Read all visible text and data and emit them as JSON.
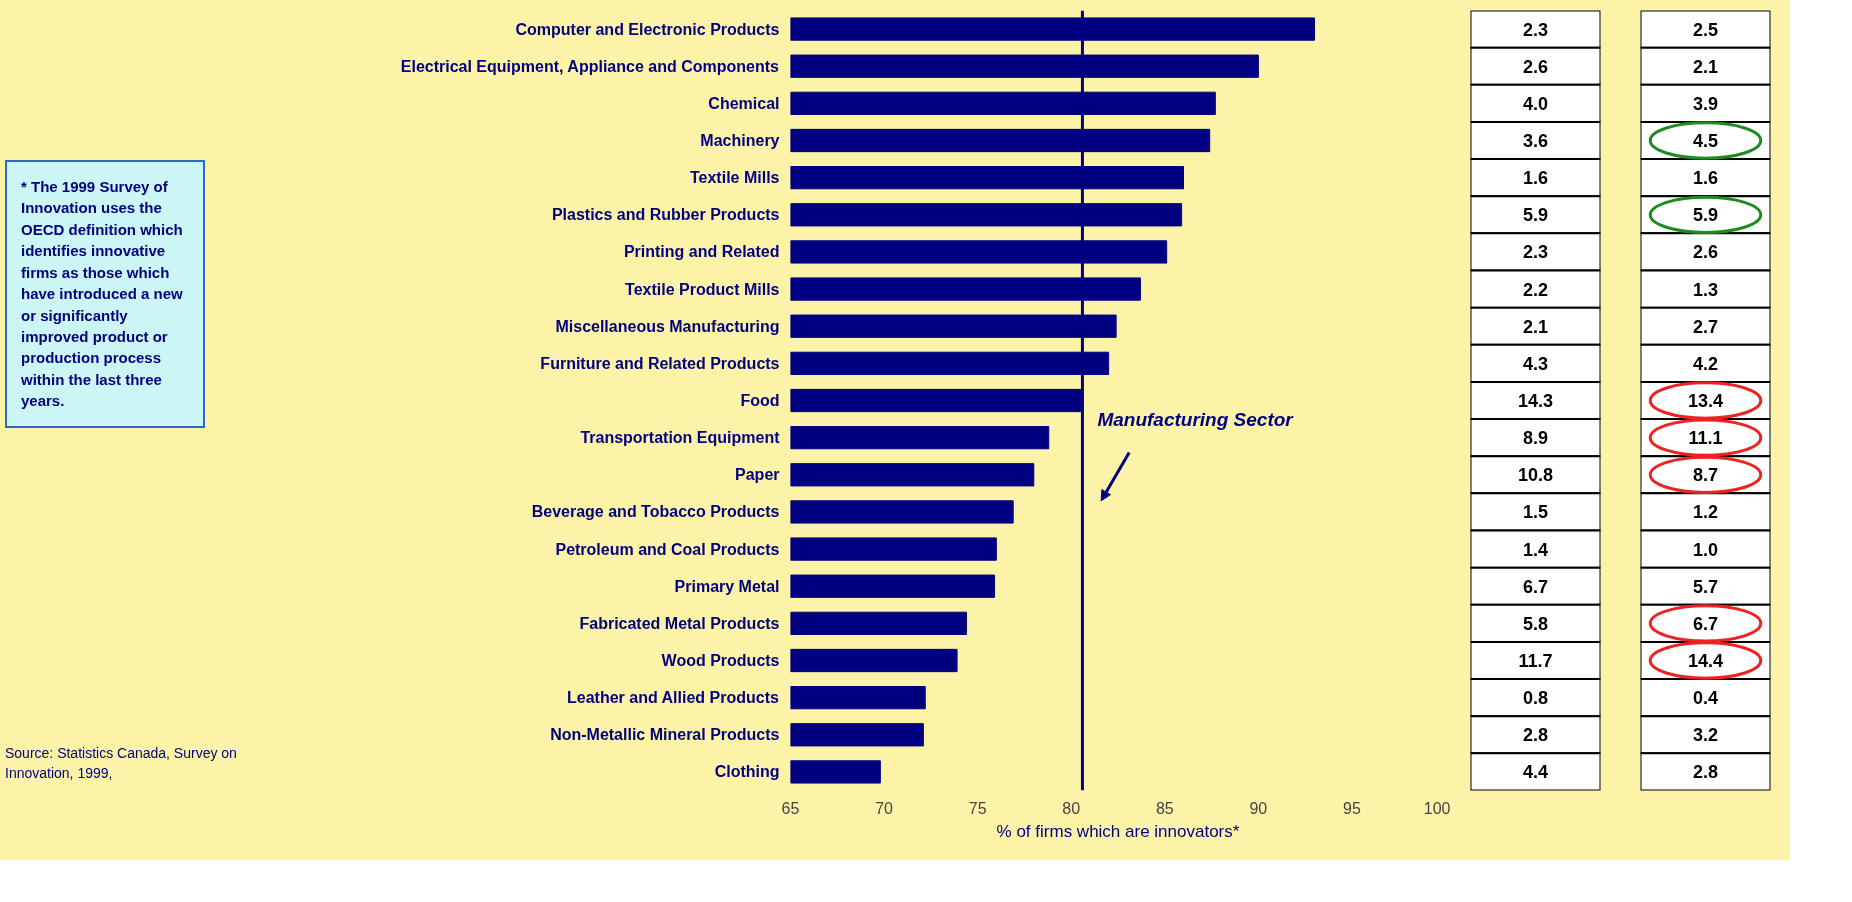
{
  "chart_data": [
    {
      "type": "bar",
      "orientation": "horizontal",
      "xlabel": "% of firms which are innovators*",
      "categories": [
        "Computer and Electronic Products",
        "Electrical Equipment, Appliance and Components",
        "Chemical",
        "Machinery",
        "Textile Mills",
        "Plastics and Rubber Products",
        "Printing and Related",
        "Textile Product Mills",
        "Miscellaneous Manufacturing",
        "Furniture and Related Products",
        "Food",
        "Transportation Equipment",
        "Paper",
        "Beverage and Tobacco Products",
        "Petroleum and Coal Products",
        "Primary Metal",
        "Fabricated Metal Products",
        "Wood Products",
        "Leather and Allied Products",
        "Non-Metallic Mineral Products",
        "Clothing"
      ],
      "values": [
        93.0,
        90.0,
        87.7,
        87.4,
        86.0,
        85.9,
        85.1,
        83.7,
        82.4,
        82.0,
        80.5,
        78.8,
        78.0,
        76.9,
        76.0,
        75.9,
        74.4,
        73.9,
        72.2,
        72.1,
        69.8
      ],
      "color": "#000080",
      "xlim": [
        65,
        100
      ],
      "xticks": [
        65,
        70,
        75,
        80,
        85,
        90,
        95,
        100
      ],
      "grid": false,
      "ref_lines": [
        {
          "axis": "x",
          "value": 80.6,
          "label": "Manufacturing Sector",
          "color": "#000080"
        }
      ],
      "annotations": [
        "* The 1999 Survey of Innovation uses the OECD definition which identifies innovative firms as those which have introduced a new or significantly improved product or production process within the last three years.",
        "Source: Statistics Canada, Survey on Innovation, 1999,"
      ]
    },
    {
      "type": "other",
      "categories": [
        null,
        null,
        null,
        null,
        null,
        null,
        null,
        null,
        null,
        null,
        null,
        null,
        null,
        null,
        null,
        null,
        null,
        null,
        null,
        null,
        null
      ],
      "values": [
        2.3,
        2.6,
        4.0,
        3.6,
        1.6,
        5.9,
        2.3,
        2.2,
        2.1,
        4.3,
        14.3,
        8.9,
        10.8,
        1.5,
        1.4,
        6.7,
        5.8,
        11.7,
        0.8,
        2.8,
        4.4
      ],
      "value_labels": [
        "2.3",
        "2.6",
        "4.0",
        "3.6",
        "1.6",
        "5.9",
        "2.3",
        "2.2",
        "2.1",
        "4.3",
        "14.3",
        "8.9",
        "10.8",
        "1.5",
        "1.4",
        "6.7",
        "5.8",
        "11.7",
        "0.8",
        "2.8",
        "4.4"
      ]
    },
    {
      "type": "other",
      "categories": [
        null,
        null,
        null,
        null,
        null,
        null,
        null,
        null,
        null,
        null,
        null,
        null,
        null,
        null,
        null,
        null,
        null,
        null,
        null,
        null,
        null
      ],
      "values": [
        2.5,
        2.1,
        3.9,
        4.5,
        1.6,
        5.9,
        2.6,
        1.3,
        2.7,
        4.2,
        13.4,
        11.1,
        8.7,
        1.2,
        1.0,
        5.7,
        6.7,
        14.4,
        0.4,
        3.2,
        2.8
      ],
      "value_labels": [
        "2.5",
        "2.1",
        "3.9",
        "4.5",
        "1.6",
        "5.9",
        "2.6",
        "1.3",
        "2.7",
        "4.2",
        "13.4",
        "11.1",
        "8.7",
        "1.2",
        "1.0",
        "5.7",
        "6.7",
        "14.4",
        "0.4",
        "3.2",
        "2.8"
      ],
      "colors": [
        null,
        null,
        null,
        "#1e8c1e",
        null,
        "#1e8c1e",
        null,
        null,
        null,
        null,
        "#ee2222",
        "#ee2222",
        "#ee2222",
        null,
        null,
        null,
        "#ee2222",
        "#ee2222",
        null,
        null,
        null
      ]
    }
  ]
}
